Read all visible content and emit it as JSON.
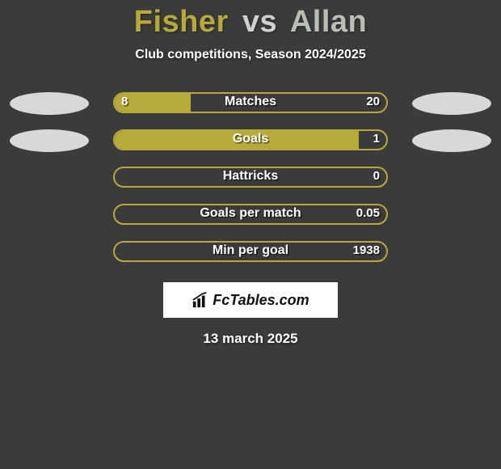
{
  "background_color": "#3b3b3b",
  "title": {
    "player1": "Fisher",
    "vs": "vs",
    "player2": "Allan",
    "player1_color": "#b6aa3a",
    "player2_color": "#b9bfb5",
    "fontsize": 38
  },
  "subtitle": "Club competitions, Season 2024/2025",
  "subtitle_fontsize": 16,
  "bars": {
    "track_border_color": "#b6aa3a",
    "track_bg_color": "rgba(0,0,0,0)",
    "fill_color": "#b6aa3a",
    "label_color": "#ffffff",
    "label_fontsize": 16,
    "value_fontsize": 15,
    "items": [
      {
        "label": "Matches",
        "left": "8",
        "right": "20",
        "fill_pct": 28,
        "oval": true
      },
      {
        "label": "Goals",
        "left": "",
        "right": "1",
        "fill_pct": 90,
        "oval": true
      },
      {
        "label": "Hattricks",
        "left": "",
        "right": "0",
        "fill_pct": 0,
        "oval": false
      },
      {
        "label": "Goals per match",
        "left": "",
        "right": "0.05",
        "fill_pct": 0,
        "oval": false
      },
      {
        "label": "Min per goal",
        "left": "",
        "right": "1938",
        "fill_pct": 0,
        "oval": false
      }
    ]
  },
  "side_ovals": {
    "left_color": "#d8d8d8",
    "right_color": "#d8d8d8"
  },
  "logo": {
    "text_fc": "Fc",
    "text_rest": "Tables.com",
    "bg": "#ffffff",
    "text_color": "#111111"
  },
  "date": "13 march 2025",
  "date_fontsize": 17
}
